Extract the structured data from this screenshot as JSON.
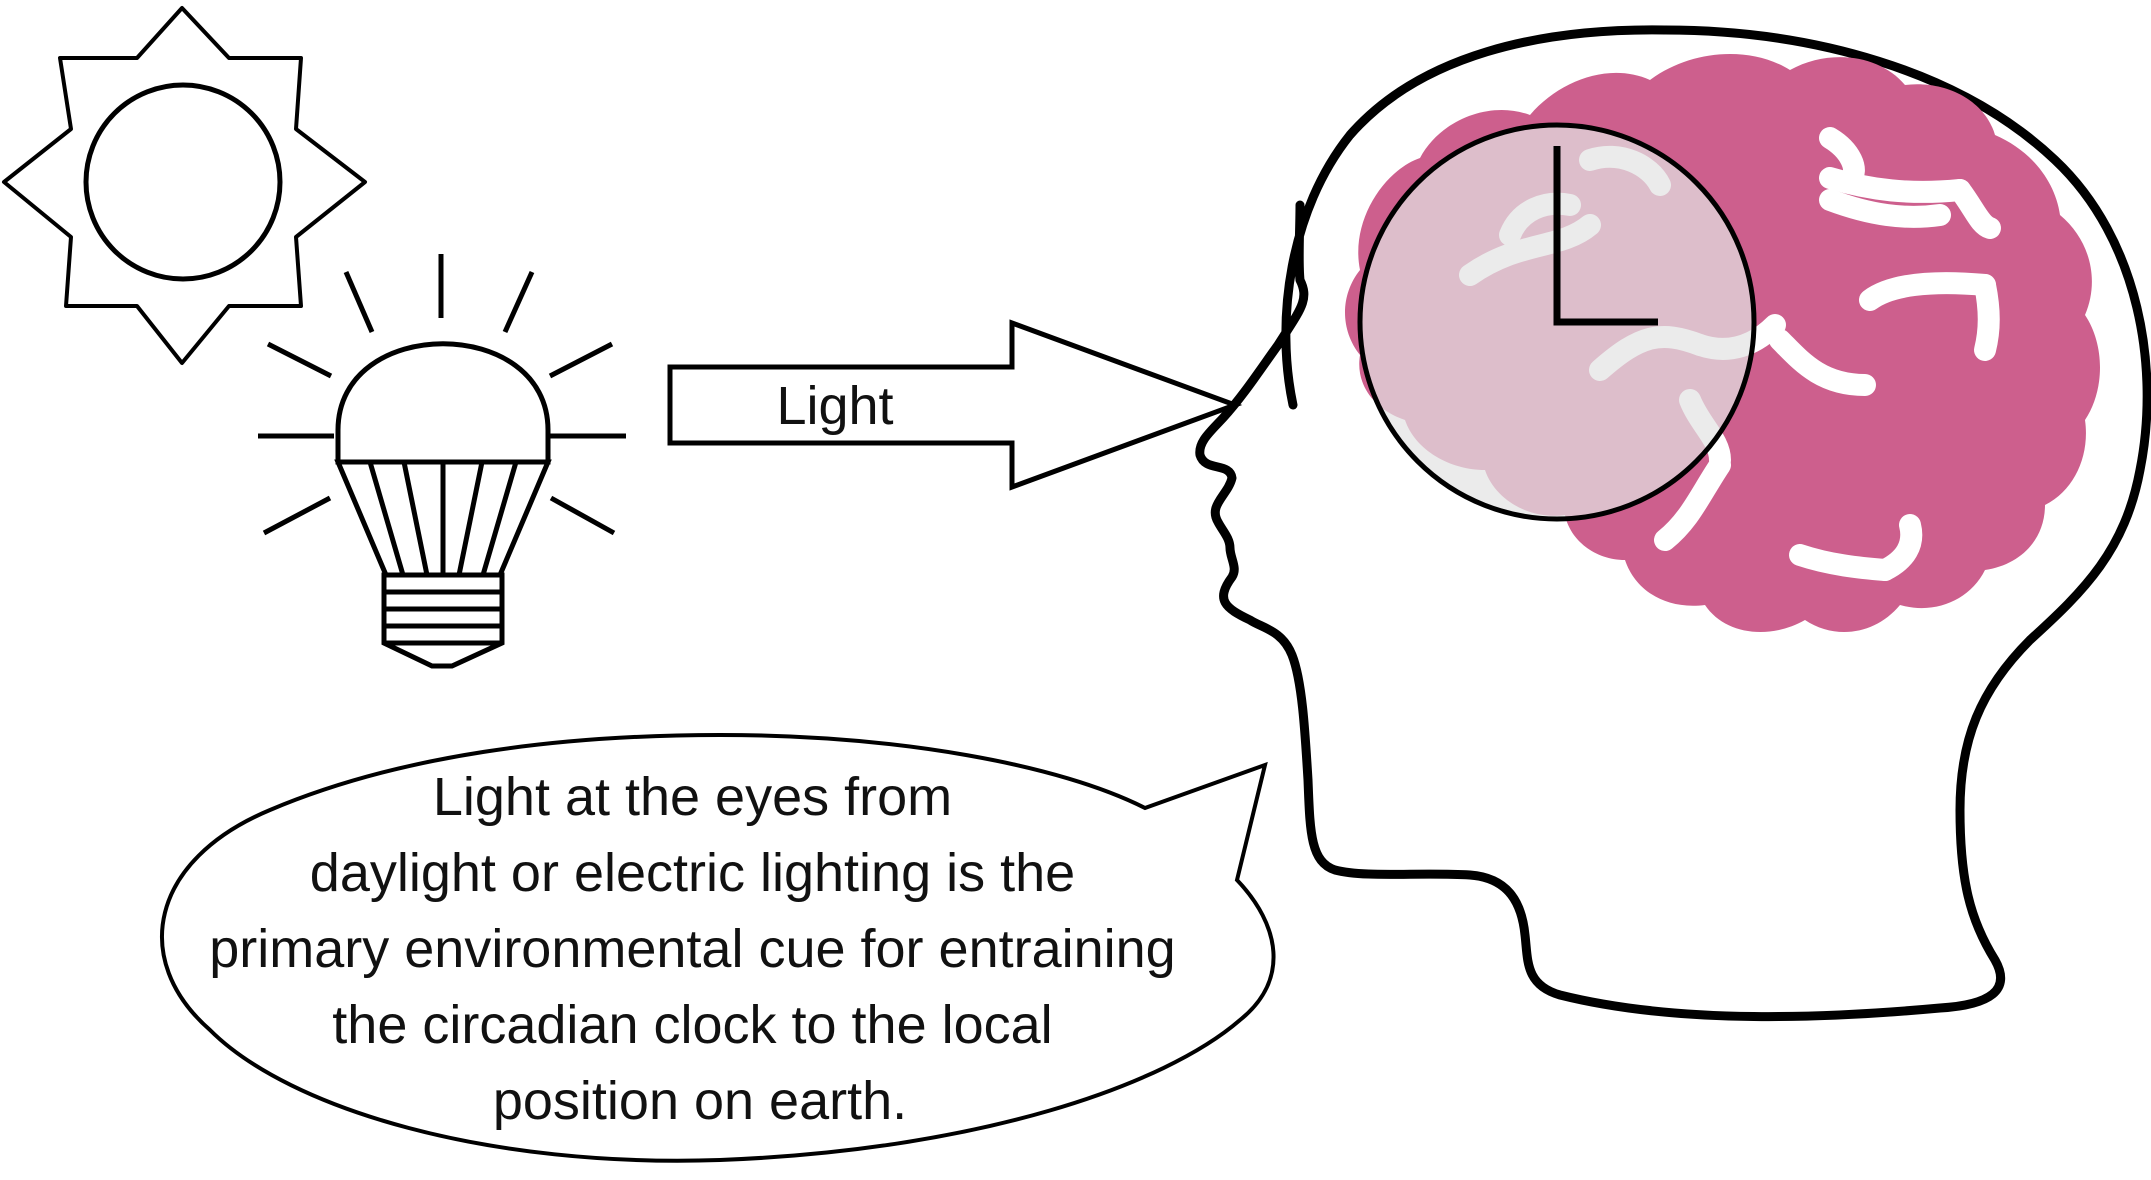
{
  "arrow": {
    "label": "Light"
  },
  "bubble": {
    "lines": [
      "Light at the eyes from",
      "daylight or electric lighting is the",
      "primary environmental cue for entraining",
      "the circadian clock to the local",
      "position on earth."
    ]
  },
  "icons": {
    "sun": "sun-icon",
    "bulb": "light-bulb-icon",
    "head": "human-head-icon",
    "brain": "brain-icon",
    "clock": "clock-icon"
  },
  "colors": {
    "brain": "#cd5f8d",
    "clock_face": "#e3e3e3",
    "stroke": "#000000"
  }
}
